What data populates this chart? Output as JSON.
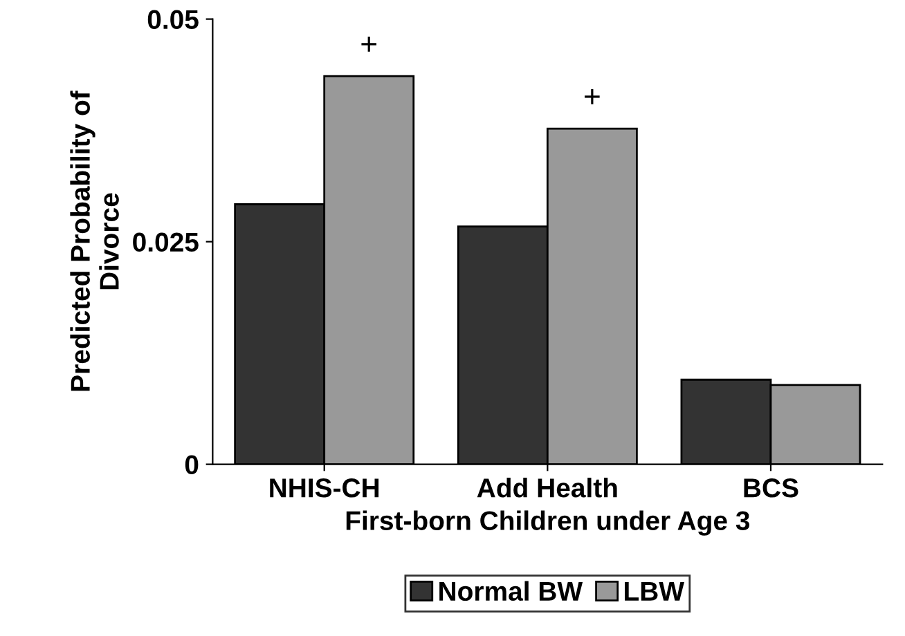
{
  "chart_data": {
    "type": "bar",
    "xlabel": "First-born Children under Age 3",
    "ylabel": "Predicted Probability of\nDivorce",
    "categories": [
      "NHIS-CH",
      "Add Health",
      "BCS"
    ],
    "series": [
      {
        "name": "Normal BW",
        "color": "#333333",
        "values": [
          0.0292,
          0.0267,
          0.0095
        ]
      },
      {
        "name": "LBW",
        "color": "#999999",
        "values": [
          0.0436,
          0.0377,
          0.0089
        ]
      }
    ],
    "annotations": [
      {
        "text": "+",
        "x": "NHIS-CH",
        "y": 0.0436
      },
      {
        "text": "+",
        "x": "Add Health",
        "y": 0.0377
      }
    ],
    "ylim": [
      0,
      0.05
    ],
    "yticks": [
      0,
      0.025,
      0.05
    ],
    "grid": false,
    "legend": "bottom"
  }
}
